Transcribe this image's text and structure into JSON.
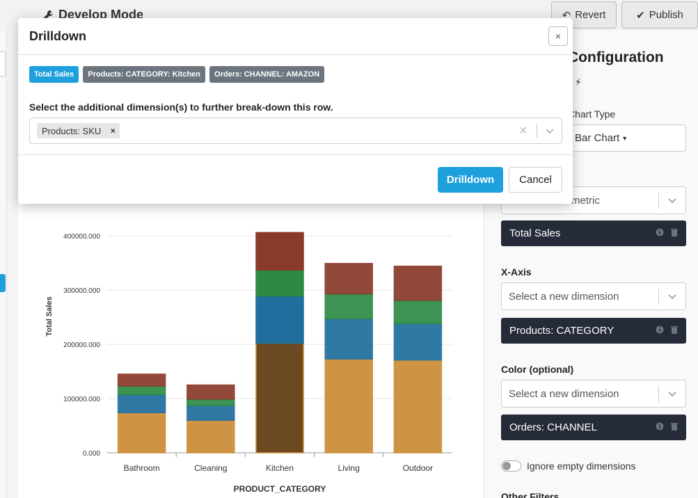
{
  "topbar": {
    "title": "Develop Mode",
    "revert_label": "Revert",
    "publish_label": "Publish"
  },
  "config": {
    "heading": "Configuration",
    "chart_type_label": "Chart Type",
    "chart_type_value": "Bar Chart",
    "metric_placeholder": "Select a new metric",
    "metric_chip": "Total Sales",
    "xaxis_label": "X-Axis",
    "xaxis_placeholder": "Select a new dimension",
    "xaxis_chip": "Products: CATEGORY",
    "color_label": "Color (optional)",
    "color_placeholder": "Select a new dimension",
    "color_chip": "Orders: CHANNEL",
    "toggle_label": "Ignore empty dimensions",
    "other_filters_label": "Other Filters"
  },
  "modal": {
    "title": "Drilldown",
    "close_label": "×",
    "badges": [
      {
        "label": "Total Sales",
        "style": "primary"
      },
      {
        "label": "Products: CATEGORY: Kitchen",
        "style": "secondary"
      },
      {
        "label": "Orders: CHANNEL: AMAZON",
        "style": "secondary"
      }
    ],
    "instruction": "Select the additional dimension(s) to further break-down this row.",
    "selected_tag": "Products: SKU",
    "tag_remove": "×",
    "clear_label": "×",
    "drilldown_label": "Drilldown",
    "cancel_label": "Cancel"
  },
  "chart_data": {
    "type": "bar",
    "stacked": true,
    "categories": [
      "Bathroom",
      "Cleaning",
      "Kitchen",
      "Living",
      "Outdoor"
    ],
    "series": [
      {
        "color": "#cc8a35",
        "values": [
          74000,
          60000,
          202000,
          173000,
          171000
        ]
      },
      {
        "color": "#1f6e9e",
        "values": [
          33000,
          27000,
          87000,
          74000,
          67000
        ]
      },
      {
        "color": "#2c8a45",
        "values": [
          16000,
          12000,
          48000,
          46000,
          43000
        ]
      },
      {
        "color": "#8a3a2a",
        "values": [
          22000,
          26000,
          69000,
          56000,
          63000
        ]
      }
    ],
    "highlight_index": 2,
    "ylabel": "Total Sales",
    "xlabel": "PRODUCT_CATEGORY",
    "yticks": [
      "0.000",
      "100000.000",
      "200000.000",
      "300000.000",
      "400000.000"
    ],
    "ylim": [
      0,
      400000
    ]
  }
}
